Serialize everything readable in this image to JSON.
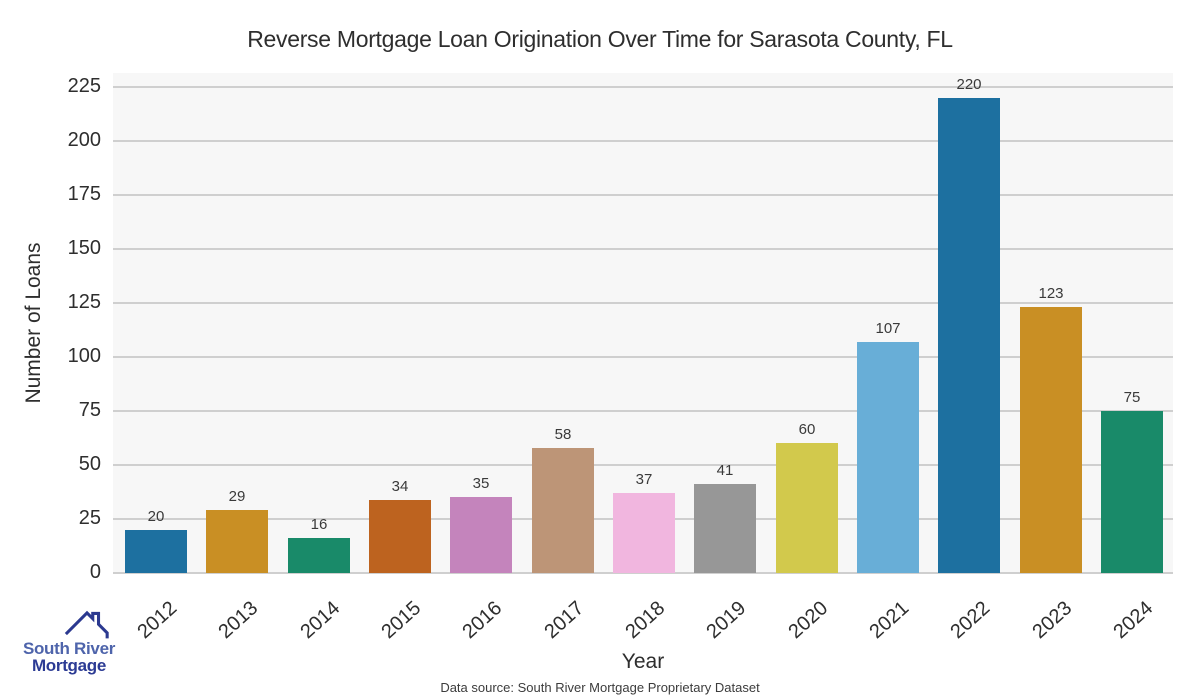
{
  "chart_data": {
    "type": "bar",
    "title": "Reverse Mortgage Loan Origination Over Time for Sarasota County, FL",
    "xlabel": "Year",
    "ylabel": "Number of Loans",
    "categories": [
      "2012",
      "2013",
      "2014",
      "2015",
      "2016",
      "2017",
      "2018",
      "2019",
      "2020",
      "2021",
      "2022",
      "2023",
      "2024"
    ],
    "values": [
      20,
      29,
      16,
      34,
      35,
      58,
      37,
      41,
      60,
      107,
      220,
      123,
      75
    ],
    "bar_colors": [
      "#1d70a0",
      "#c98f24",
      "#198a69",
      "#bd631f",
      "#c484bc",
      "#bd9577",
      "#f1b6df",
      "#979797",
      "#d2c94c",
      "#68aed7",
      "#1d70a0",
      "#c98f24",
      "#198a69"
    ],
    "yticks": [
      0,
      25,
      50,
      75,
      100,
      125,
      150,
      175,
      200,
      225
    ],
    "ylim": [
      0,
      231.5
    ],
    "grid": true,
    "legend": "none",
    "value_labels": true,
    "plot_bg_color": "#f7f7f7",
    "grid_color": "#cfcfcf"
  },
  "footer": {
    "source_text": "Data source: South River Mortgage Proprietary Dataset"
  },
  "logo": {
    "line1": "South River",
    "line2": "Mortgage",
    "line1_color": "#4e64ab",
    "line2_color": "#2c3b94",
    "roof_color": "#2b3990"
  }
}
